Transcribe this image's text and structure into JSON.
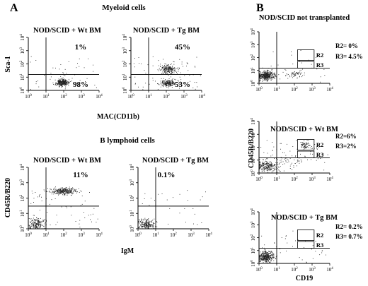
{
  "panel_a": {
    "label": "A",
    "myeloid_title": "Myeloid cells",
    "b_lymphoid_title": "B lymphoid cells"
  },
  "panel_b": {
    "label": "B"
  },
  "chart_data": [
    {
      "type": "scatter",
      "panel": "A",
      "section": "Myeloid cells",
      "title": "NOD/SCID + Wt BM",
      "xlabel": "",
      "ylabel": "Sca-1",
      "xscale": "log",
      "yscale": "log",
      "xlim": [
        1,
        10000
      ],
      "ylim": [
        1,
        10000
      ],
      "x_ticks": [
        "10^0",
        "10^1",
        "10^2",
        "10^3",
        "10^4"
      ],
      "y_ticks": [
        "10^0",
        "10^1",
        "10^2",
        "10^3",
        "10^4"
      ],
      "quadrant_divider": {
        "x": 10,
        "y": 16
      },
      "percentages": [
        {
          "quadrant": "upper-right",
          "value": "1%"
        },
        {
          "quadrant": "lower-right",
          "value": "98%"
        }
      ],
      "clusters": [
        {
          "x": 80,
          "y": 4,
          "spread_x": 0.18,
          "spread_y": 0.13,
          "count": 340
        },
        {
          "x": 120,
          "y": 40,
          "spread_x": 0.4,
          "spread_y": 0.4,
          "count": 12
        }
      ],
      "background_dots": 30
    },
    {
      "type": "scatter",
      "panel": "A",
      "section": "Myeloid cells",
      "title": "NOD/SCID + Tg BM",
      "xlabel": "MAC(CD11b)",
      "ylabel": "",
      "xscale": "log",
      "yscale": "log",
      "xlim": [
        1,
        10000
      ],
      "ylim": [
        1,
        10000
      ],
      "x_ticks": [
        "10^0",
        "10^1",
        "10^2",
        "10^3",
        "10^4"
      ],
      "y_ticks": [
        "10^0",
        "10^1",
        "10^2",
        "10^3",
        "10^4"
      ],
      "quadrant_divider": {
        "x": 10,
        "y": 16
      },
      "percentages": [
        {
          "quadrant": "upper-right",
          "value": "45%"
        },
        {
          "quadrant": "lower-right",
          "value": "53%"
        }
      ],
      "clusters": [
        {
          "x": 120,
          "y": 3.5,
          "spread_x": 0.22,
          "spread_y": 0.14,
          "count": 230
        },
        {
          "x": 120,
          "y": 40,
          "spread_x": 0.22,
          "spread_y": 0.17,
          "count": 210
        }
      ],
      "background_dots": 70
    },
    {
      "type": "scatter",
      "panel": "A",
      "section": "B lymphoid cells",
      "title": "NOD/SCID + Wt BM",
      "xlabel": "",
      "ylabel": "CD45R/B220",
      "xscale": "log",
      "yscale": "log",
      "xlim": [
        1,
        10000
      ],
      "ylim": [
        1,
        10000
      ],
      "x_ticks": [
        "10^0",
        "10^1",
        "10^2",
        "10^3",
        "10^4"
      ],
      "y_ticks": [
        "10^0",
        "10^1",
        "10^2",
        "10^3",
        "10^4"
      ],
      "quadrant_divider": {
        "x": 10,
        "y": 30
      },
      "percentages": [
        {
          "quadrant": "upper-right",
          "value": "11%"
        }
      ],
      "clusters": [
        {
          "x": 100,
          "y": 300,
          "spread_x": 0.38,
          "spread_y": 0.1,
          "count": 300
        },
        {
          "x": 3,
          "y": 2,
          "spread_x": 0.22,
          "spread_y": 0.2,
          "count": 200
        }
      ],
      "background_dots": 60
    },
    {
      "type": "scatter",
      "panel": "A",
      "section": "B lymphoid cells",
      "title": "NOD/SCID + Tg BM",
      "xlabel": "IgM",
      "ylabel": "",
      "xscale": "log",
      "yscale": "log",
      "xlim": [
        1,
        10000
      ],
      "ylim": [
        1,
        10000
      ],
      "x_ticks": [
        "10^0",
        "10^1",
        "10^2",
        "10^3",
        "10^4"
      ],
      "y_ticks": [
        "10^0",
        "10^1",
        "10^2",
        "10^3",
        "10^4"
      ],
      "quadrant_divider": {
        "x": 10,
        "y": 30
      },
      "percentages": [
        {
          "quadrant": "upper-right",
          "value": "0.1%"
        }
      ],
      "clusters": [
        {
          "x": 3,
          "y": 2,
          "spread_x": 0.2,
          "spread_y": 0.18,
          "count": 220
        }
      ],
      "background_dots": 30
    },
    {
      "type": "scatter",
      "panel": "B",
      "title": "NOD/SCID not transplanted",
      "xlabel": "",
      "ylabel": "",
      "xscale": "log",
      "yscale": "log",
      "xlim": [
        1,
        10000
      ],
      "ylim": [
        1,
        10000
      ],
      "x_ticks": [
        "10^0",
        "10^1",
        "10^2",
        "10^3",
        "10^4"
      ],
      "y_ticks": [
        "10^0",
        "10^1",
        "10^2",
        "10^3",
        "10^4"
      ],
      "quadrant_divider": {
        "x": 10,
        "y": 15
      },
      "gates": [
        {
          "name": "R2",
          "x": [
            150,
            1300
          ],
          "y": [
            60,
            400
          ]
        },
        {
          "name": "R3",
          "x": [
            150,
            1300
          ],
          "y": [
            15,
            50
          ]
        }
      ],
      "stats": [
        "R2= 0%",
        "R3= 4.5%"
      ],
      "clusters": [
        {
          "x": 2.5,
          "y": 4,
          "spread_x": 0.25,
          "spread_y": 0.17,
          "count": 420
        },
        {
          "x": 100,
          "y": 6,
          "spread_x": 0.3,
          "spread_y": 0.15,
          "count": 60
        }
      ],
      "background_dots": 30
    },
    {
      "type": "scatter",
      "panel": "B",
      "title": "NOD/SCID + Wt BM",
      "xlabel": "",
      "ylabel": "CD45R/B220",
      "xscale": "log",
      "yscale": "log",
      "xlim": [
        1,
        10000
      ],
      "ylim": [
        1,
        10000
      ],
      "x_ticks": [
        "10^0",
        "10^1",
        "10^2",
        "10^3",
        "10^4"
      ],
      "y_ticks": [
        "10^0",
        "10^1",
        "10^2",
        "10^3",
        "10^4"
      ],
      "quadrant_divider": {
        "x": 10,
        "y": 15
      },
      "gates": [
        {
          "name": "R2",
          "x": [
            150,
            1300
          ],
          "y": [
            60,
            400
          ]
        },
        {
          "name": "R3",
          "x": [
            150,
            1300
          ],
          "y": [
            15,
            50
          ]
        }
      ],
      "stats": [
        "R2=6%",
        "R3=2%"
      ],
      "clusters": [
        {
          "x": 3,
          "y": 3.5,
          "spread_x": 0.3,
          "spread_y": 0.2,
          "count": 240
        },
        {
          "x": 400,
          "y": 150,
          "spread_x": 0.15,
          "spread_y": 0.15,
          "count": 70
        },
        {
          "x": 40,
          "y": 12,
          "spread_x": 0.5,
          "spread_y": 0.3,
          "count": 50
        }
      ],
      "background_dots": 60
    },
    {
      "type": "scatter",
      "panel": "B",
      "title": "NOD/SCID + Tg BM",
      "xlabel": "CD19",
      "ylabel": "",
      "xscale": "log",
      "yscale": "log",
      "xlim": [
        1,
        10000
      ],
      "ylim": [
        1,
        10000
      ],
      "x_ticks": [
        "10^0",
        "10^1",
        "10^2",
        "10^3",
        "10^4"
      ],
      "y_ticks": [
        "10^0",
        "10^1",
        "10^2",
        "10^3",
        "10^4"
      ],
      "quadrant_divider": {
        "x": 10,
        "y": 15
      },
      "gates": [
        {
          "name": "R2",
          "x": [
            150,
            1300
          ],
          "y": [
            60,
            400
          ]
        },
        {
          "name": "R3",
          "x": [
            150,
            1300
          ],
          "y": [
            15,
            50
          ]
        }
      ],
      "stats": [
        "R2= 0.2%",
        "R3= 0.7%"
      ],
      "clusters": [
        {
          "x": 2.5,
          "y": 3.5,
          "spread_x": 0.22,
          "spread_y": 0.2,
          "count": 380
        }
      ],
      "background_dots": 35
    }
  ]
}
